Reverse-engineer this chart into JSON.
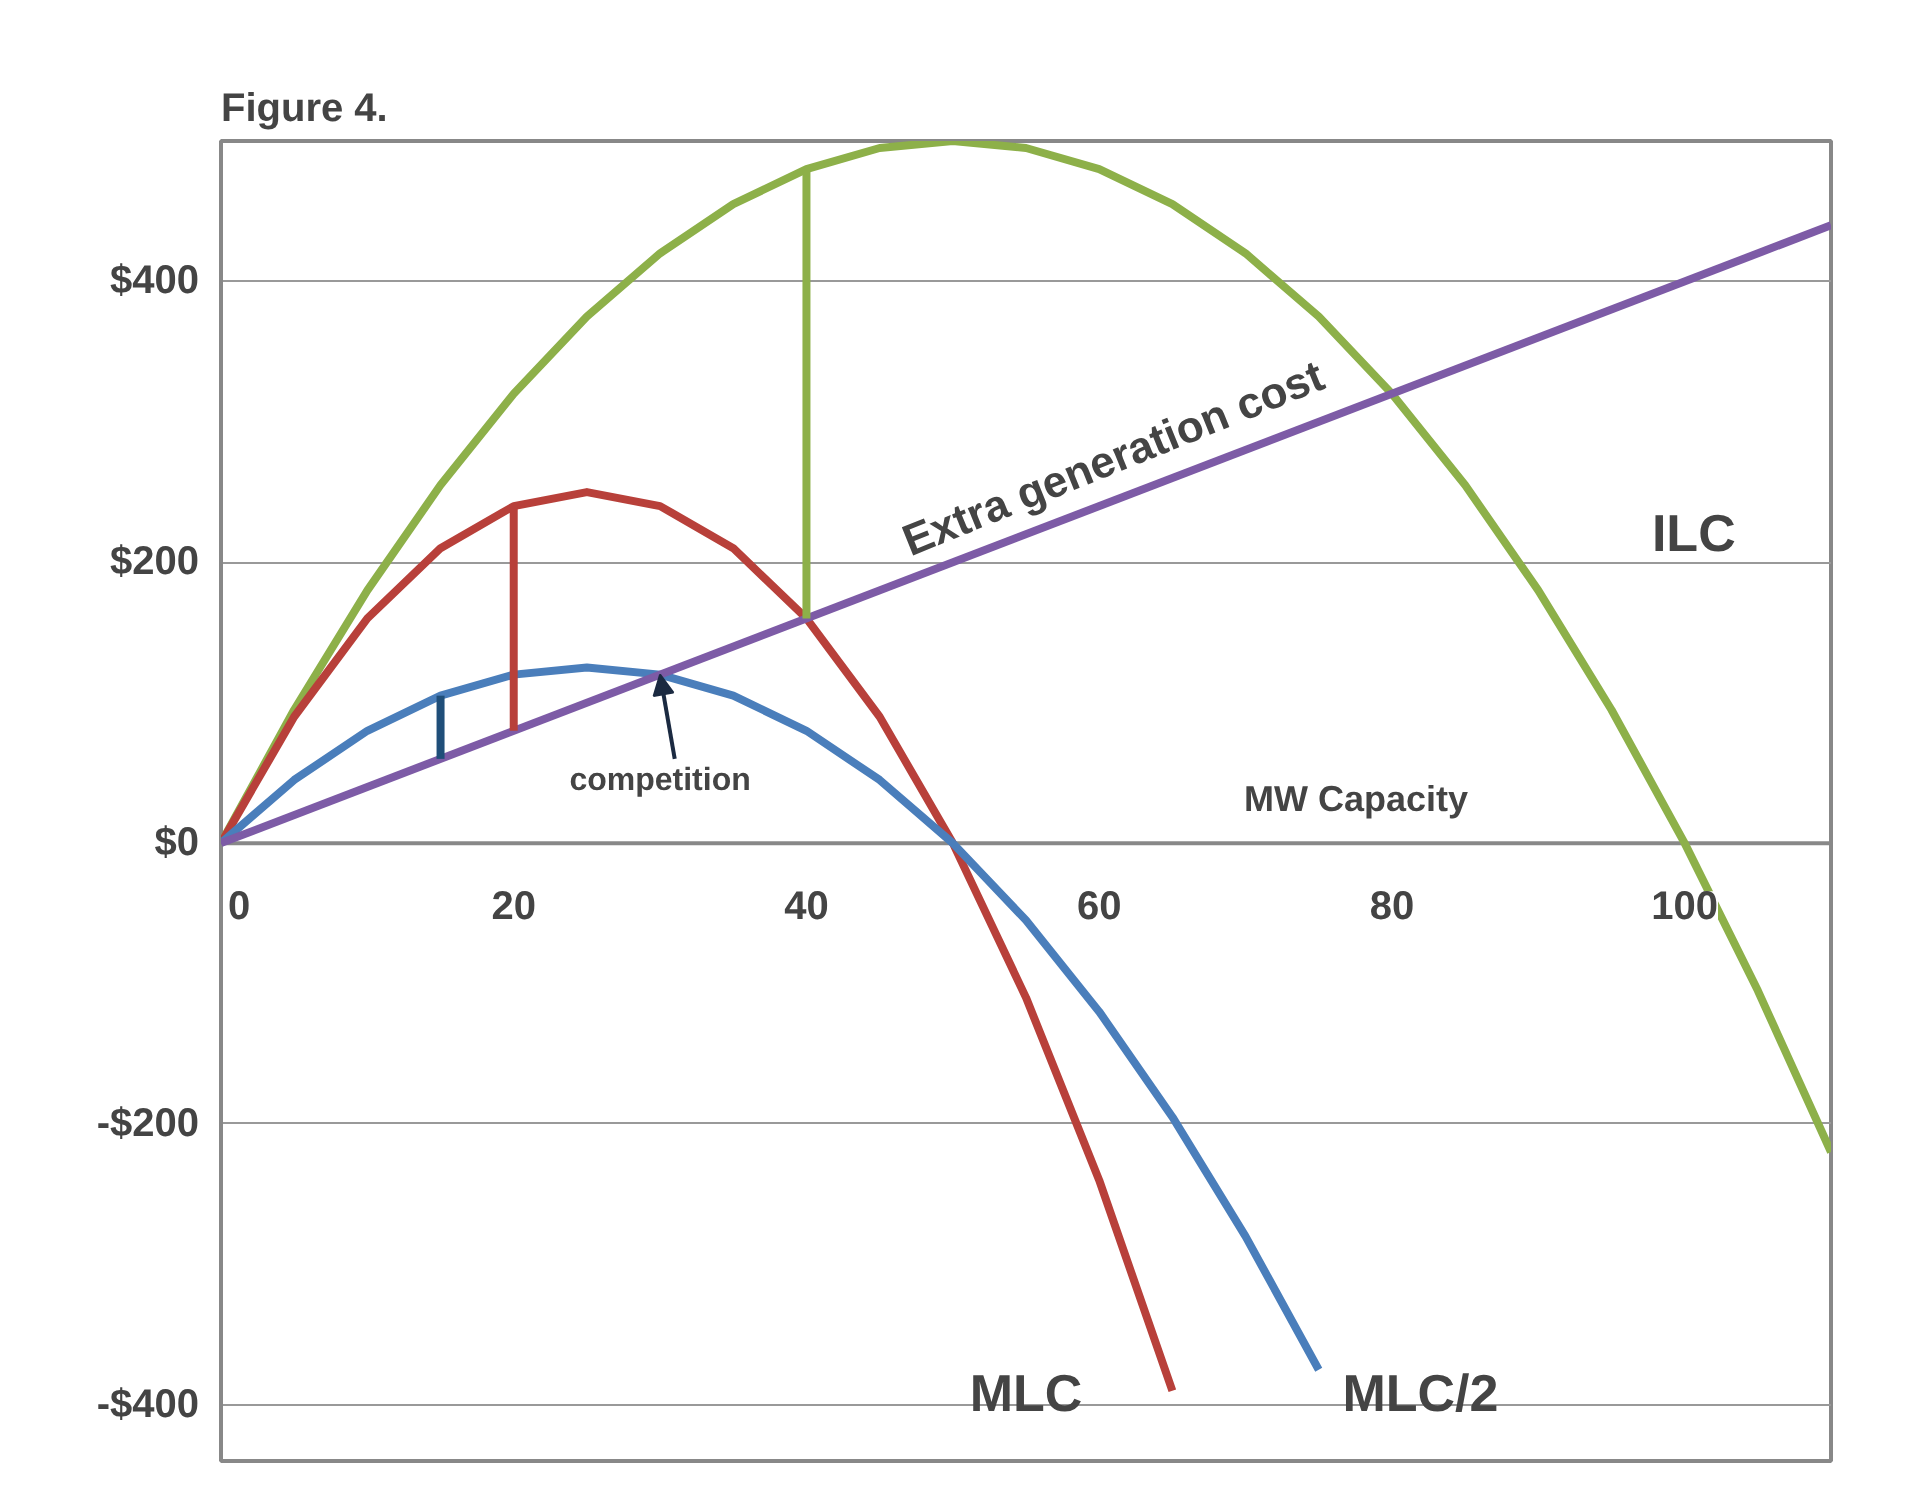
{
  "chart_data": {
    "type": "line",
    "title": "Figure 4.",
    "xlabel": "MW Capacity",
    "xlim": [
      0,
      110
    ],
    "ylim": [
      -440,
      500
    ],
    "xticks": [
      0,
      20,
      40,
      60,
      80,
      100
    ],
    "yticks": [
      {
        "value": -400,
        "label": "-$400"
      },
      {
        "value": -200,
        "label": "-$200"
      },
      {
        "value": 0,
        "label": "$0"
      },
      {
        "value": 200,
        "label": "$200"
      },
      {
        "value": 400,
        "label": "$400"
      }
    ],
    "grid": "y",
    "marker": "none",
    "line_style": "solid",
    "series": [
      {
        "name": "ILC",
        "color": "#8db049",
        "x": [
          0,
          5,
          10,
          15,
          20,
          25,
          30,
          35,
          40,
          45,
          50,
          55,
          60,
          65,
          70,
          75,
          80,
          85,
          90,
          95,
          100,
          105,
          110
        ],
        "values": [
          0,
          95,
          180,
          255,
          320,
          375,
          420,
          455,
          480,
          495,
          500,
          495,
          480,
          455,
          420,
          375,
          320,
          255,
          180,
          95,
          0,
          -105,
          -220
        ]
      },
      {
        "name": "MLC",
        "color": "#b8403a",
        "x": [
          0,
          5,
          10,
          15,
          20,
          25,
          30,
          35,
          40,
          45,
          50,
          55,
          60,
          65
        ],
        "values": [
          0,
          90,
          160,
          210,
          240,
          250,
          240,
          210,
          160,
          90,
          0,
          -110,
          -240,
          -390
        ]
      },
      {
        "name": "MLC/2",
        "color": "#4a7ebb",
        "x": [
          0,
          5,
          10,
          15,
          20,
          25,
          30,
          35,
          40,
          45,
          50,
          55,
          60,
          65,
          70,
          75
        ],
        "values": [
          0,
          45,
          80,
          105,
          120,
          125,
          120,
          105,
          80,
          45,
          0,
          -55,
          -120,
          -195,
          -280,
          -375
        ]
      },
      {
        "name": "Extra generation cost",
        "color": "#7d5ba6",
        "x": [
          0,
          110
        ],
        "values": [
          0,
          440
        ]
      },
      {
        "color": "#8db049",
        "x": [
          40,
          40
        ],
        "values": [
          160,
          480
        ]
      },
      {
        "color": "#b8403a",
        "x": [
          20,
          20
        ],
        "values": [
          80,
          240
        ]
      },
      {
        "color": "#1f4e79",
        "x": [
          15,
          15
        ],
        "values": [
          60,
          105
        ]
      }
    ],
    "annotations": [
      {
        "text": "competition",
        "x": 30,
        "y": 120
      }
    ]
  }
}
